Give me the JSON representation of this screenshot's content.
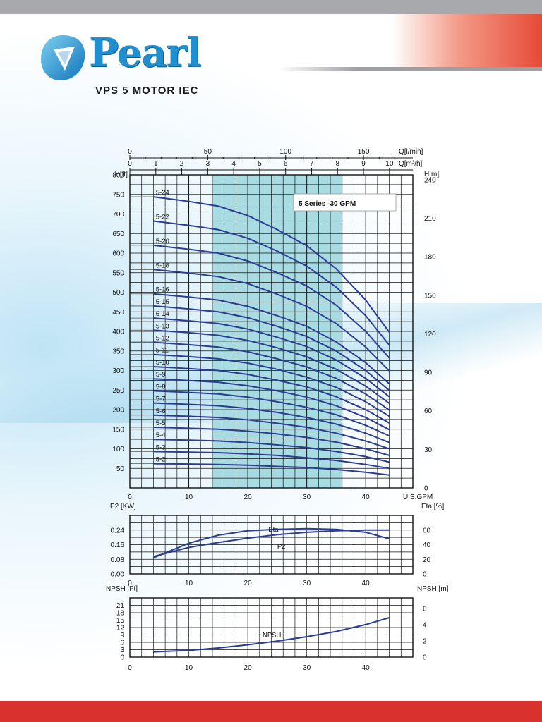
{
  "brand": {
    "name": "Pearl",
    "subtitle": "VPS 5 MOTOR IEC"
  },
  "colors": {
    "curve": "#2b3c95",
    "band": "#a9dce2",
    "accent_red": "#d9322e",
    "brand_blue": "#1f8fcf"
  },
  "chart_data": [
    {
      "type": "line",
      "title": "5 Series -30 GPM",
      "xlabel": "U.S.GPM",
      "xlim": [
        0,
        48
      ],
      "xticks": [
        0,
        10,
        20,
        30,
        40
      ],
      "ylabel": "H[ft]",
      "ylim": [
        0,
        800
      ],
      "yticks": [
        50,
        100,
        150,
        200,
        250,
        300,
        350,
        400,
        450,
        500,
        550,
        600,
        650,
        700,
        750,
        800
      ],
      "y2label": "H[m]",
      "y2lim": [
        0,
        243.8
      ],
      "y2ticks": [
        0,
        30,
        60,
        90,
        120,
        150,
        180,
        210,
        240
      ],
      "top_axis_lmin": {
        "label": "Q[l/min]",
        "ticks": [
          0,
          50,
          100,
          150
        ]
      },
      "top_axis_m3h": {
        "label": "Q[m³/h]",
        "ticks": [
          0,
          1,
          2,
          3,
          4,
          5,
          6,
          7,
          8,
          9,
          10
        ]
      },
      "highlight_range": [
        14,
        36
      ],
      "grid": true,
      "x": [
        4,
        10,
        15,
        20,
        25,
        30,
        35,
        40,
        44
      ],
      "series": [
        {
          "name": "5-2",
          "values": [
            62,
            61,
            60,
            58,
            55,
            52,
            47,
            40,
            33
          ]
        },
        {
          "name": "5-3",
          "values": [
            93,
            91.5,
            90,
            87,
            83,
            77,
            70,
            60,
            50
          ]
        },
        {
          "name": "5-4",
          "values": [
            124,
            122,
            120,
            116,
            110,
            103,
            93,
            80,
            66
          ]
        },
        {
          "name": "5-5",
          "values": [
            155,
            152.5,
            150,
            145,
            138,
            129,
            117,
            100,
            83
          ]
        },
        {
          "name": "5-6",
          "values": [
            186,
            183,
            180,
            174,
            165,
            155,
            140,
            120,
            100
          ]
        },
        {
          "name": "5-7",
          "values": [
            217,
            213.5,
            210,
            203,
            193,
            180,
            163,
            140,
            116
          ]
        },
        {
          "name": "5-8",
          "values": [
            248,
            244,
            240,
            232,
            220,
            206,
            187,
            160,
            133
          ]
        },
        {
          "name": "5-9",
          "values": [
            279,
            274.5,
            270,
            261,
            248,
            232,
            210,
            180,
            149
          ]
        },
        {
          "name": "5-10",
          "values": [
            310,
            305,
            300,
            290,
            275,
            258,
            233,
            200,
            166
          ]
        },
        {
          "name": "5-11",
          "values": [
            341,
            335.5,
            330,
            319,
            303,
            283,
            257,
            220,
            183
          ]
        },
        {
          "name": "5-12",
          "values": [
            372,
            366,
            360,
            348,
            330,
            309,
            280,
            240,
            199
          ]
        },
        {
          "name": "5-13",
          "values": [
            403,
            396.5,
            390,
            377,
            358,
            335,
            303,
            260,
            216
          ]
        },
        {
          "name": "5-14",
          "values": [
            434,
            427,
            420,
            406,
            385,
            361,
            327,
            280,
            233
          ]
        },
        {
          "name": "5-15",
          "values": [
            465,
            457.5,
            450,
            435,
            413,
            387,
            350,
            300,
            249
          ]
        },
        {
          "name": "5-16",
          "values": [
            496,
            488,
            480,
            464,
            440,
            413,
            373,
            320,
            266
          ]
        },
        {
          "name": "5-18",
          "values": [
            558,
            549,
            540,
            522,
            495,
            464,
            420,
            360,
            299
          ]
        },
        {
          "name": "5-20",
          "values": [
            620,
            610,
            600,
            580,
            550,
            516,
            467,
            400,
            332
          ]
        },
        {
          "name": "5-22",
          "values": [
            682,
            671,
            660,
            638,
            605,
            567,
            513,
            440,
            365
          ]
        },
        {
          "name": "5-24",
          "values": [
            744,
            732,
            720,
            696,
            660,
            619,
            560,
            480,
            398
          ]
        }
      ]
    },
    {
      "type": "line",
      "xlabel": "",
      "xlim": [
        0,
        48
      ],
      "xticks": [
        0,
        10,
        20,
        30,
        40
      ],
      "ylabel": "P2 [KW]",
      "ylim": [
        0,
        0.32
      ],
      "yticks": [
        "0.00",
        "0.08",
        "0.16",
        "0.24"
      ],
      "y2label": "Eta [%]",
      "y2lim": [
        0,
        80
      ],
      "y2ticks": [
        0,
        20,
        40,
        60
      ],
      "grid": true,
      "series": [
        {
          "name": "P2",
          "x": [
            4,
            10,
            15,
            20,
            25,
            30,
            35,
            40,
            44
          ],
          "values": [
            0.095,
            0.145,
            0.172,
            0.196,
            0.215,
            0.228,
            0.236,
            0.24,
            0.24
          ],
          "axis": "left"
        },
        {
          "name": "Eta",
          "x": [
            4,
            10,
            15,
            20,
            25,
            30,
            35,
            40,
            44
          ],
          "values": [
            22,
            42,
            53,
            59,
            61,
            62,
            61,
            57,
            48
          ],
          "axis": "right"
        }
      ]
    },
    {
      "type": "line",
      "xlabel": "",
      "xlim": [
        0,
        48
      ],
      "xticks": [
        0,
        10,
        20,
        30,
        40
      ],
      "ylabel": "NPSH [Ft]",
      "ylim": [
        0,
        24
      ],
      "yticks": [
        0,
        3,
        6,
        9,
        12,
        15,
        18,
        21
      ],
      "y2label": "NPSH [m]",
      "y2lim": [
        0,
        7.3
      ],
      "y2ticks": [
        0,
        2,
        4,
        6
      ],
      "grid": true,
      "series": [
        {
          "name": "NPSH",
          "x": [
            4,
            10,
            15,
            20,
            25,
            30,
            35,
            40,
            44
          ],
          "values": [
            2.1,
            2.7,
            3.7,
            5,
            6.5,
            8.3,
            10.4,
            13.2,
            16
          ]
        }
      ]
    }
  ]
}
